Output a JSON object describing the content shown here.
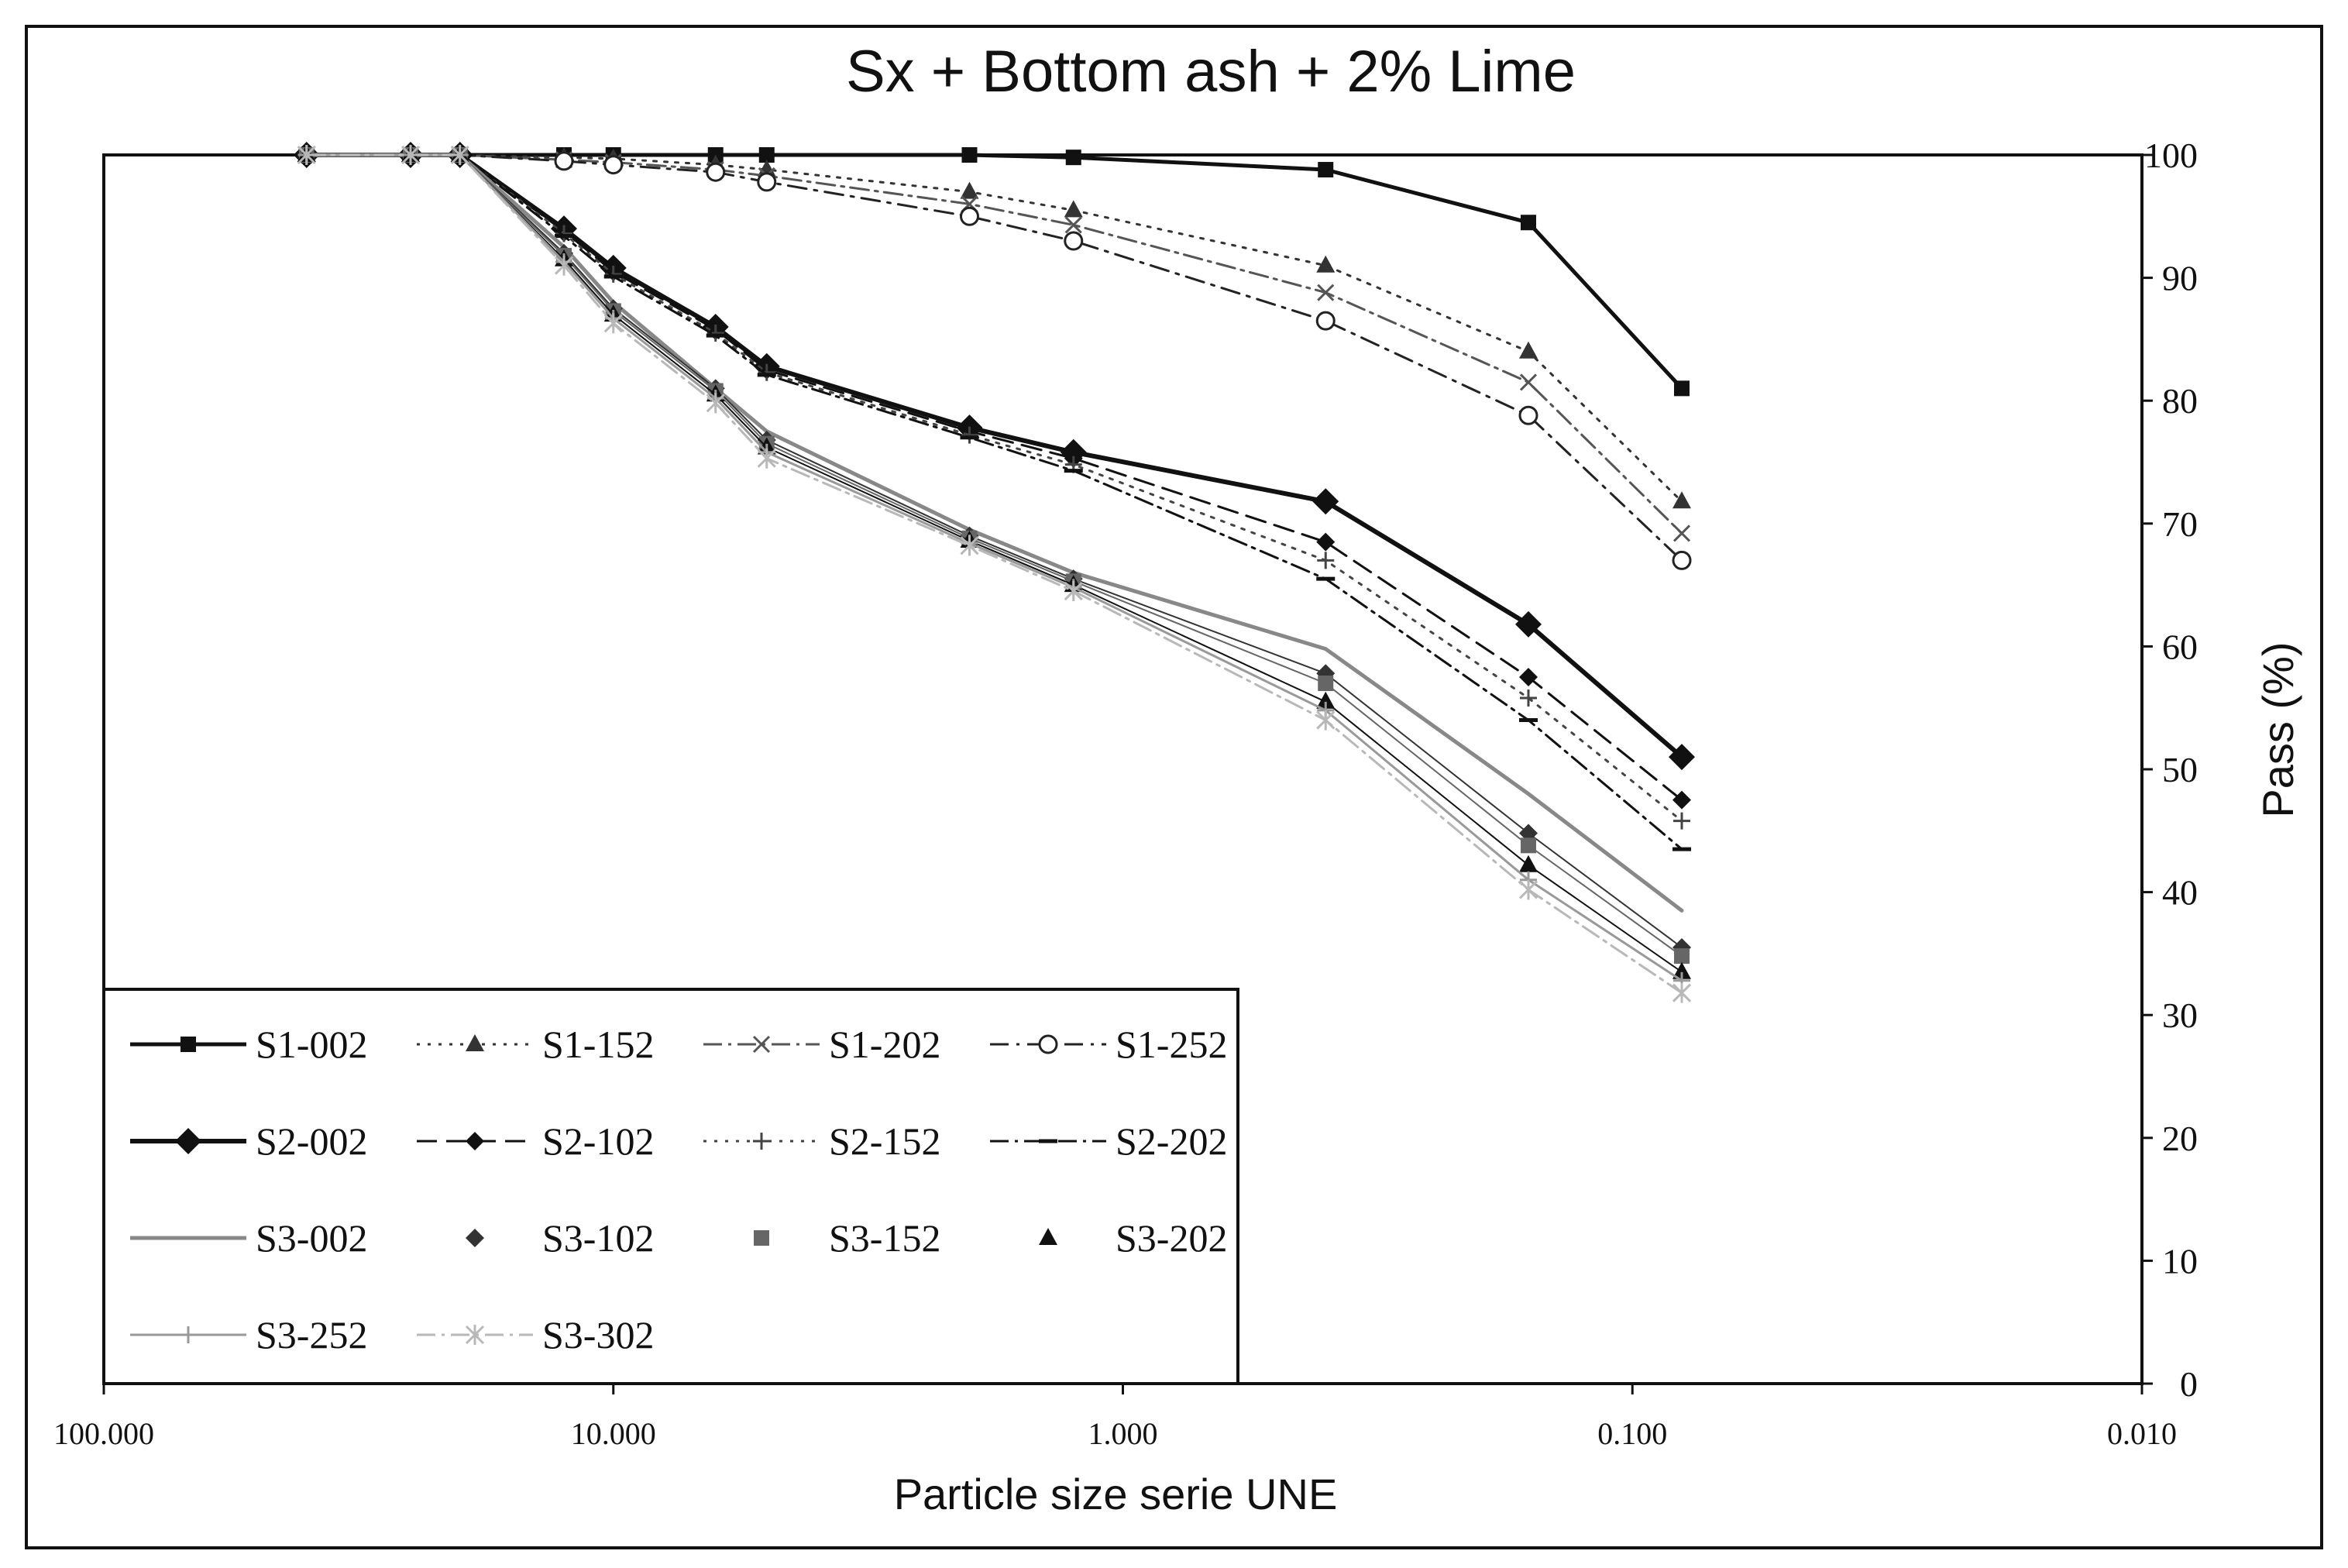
{
  "chart_data": {
    "type": "line",
    "title": "Sx + Bottom ash + 2% Lime",
    "xlabel": "Particle size serie UNE",
    "ylabel": "Pass (%)",
    "x_scale": "log",
    "x_reversed": true,
    "xlim": [
      100,
      0.01
    ],
    "ylim": [
      0,
      100
    ],
    "x_tick_values": [
      100,
      10,
      1,
      0.1,
      0.01
    ],
    "x_tick_labels": [
      "100.000",
      "10.000",
      "1.000",
      "0.100",
      "0.010"
    ],
    "y_ticks": [
      0,
      10,
      20,
      30,
      40,
      50,
      60,
      70,
      80,
      90,
      100
    ],
    "y_axis_side": "right",
    "legend_position": "bottom-left",
    "series": [
      {
        "name": "S1-002",
        "color": "#111111",
        "width": 5,
        "dash": "",
        "marker": "square",
        "points": [
          [
            40,
            100
          ],
          [
            25,
            100
          ],
          [
            20,
            100
          ],
          [
            12.5,
            100
          ],
          [
            10,
            100
          ],
          [
            6.3,
            100
          ],
          [
            5,
            100
          ],
          [
            2,
            100
          ],
          [
            1.25,
            99.8
          ],
          [
            0.4,
            98.8
          ],
          [
            0.16,
            94.5
          ],
          [
            0.08,
            81
          ]
        ]
      },
      {
        "name": "S1-152",
        "color": "#333333",
        "width": 3,
        "dash": "4 10",
        "marker": "triangle",
        "points": [
          [
            40,
            100
          ],
          [
            25,
            100
          ],
          [
            20,
            100
          ],
          [
            12.5,
            99.8
          ],
          [
            10,
            99.7
          ],
          [
            6.3,
            99.2
          ],
          [
            5,
            98.8
          ],
          [
            2,
            97
          ],
          [
            1.25,
            95.5
          ],
          [
            0.4,
            91
          ],
          [
            0.16,
            84
          ],
          [
            0.08,
            71.8
          ]
        ]
      },
      {
        "name": "S1-202",
        "color": "#555555",
        "width": 3,
        "dash": "24 8 4 8",
        "marker": "x",
        "points": [
          [
            40,
            100
          ],
          [
            25,
            100
          ],
          [
            20,
            100
          ],
          [
            12.5,
            99.6
          ],
          [
            10,
            99.4
          ],
          [
            6.3,
            98.8
          ],
          [
            5,
            98.3
          ],
          [
            2,
            96
          ],
          [
            1.25,
            94.3
          ],
          [
            0.4,
            88.8
          ],
          [
            0.16,
            81.5
          ],
          [
            0.08,
            69.2
          ]
        ]
      },
      {
        "name": "S1-252",
        "color": "#222222",
        "width": 3,
        "dash": "24 10 4 10",
        "marker": "circle-open",
        "points": [
          [
            40,
            100
          ],
          [
            25,
            100
          ],
          [
            20,
            100
          ],
          [
            12.5,
            99.5
          ],
          [
            10,
            99.2
          ],
          [
            6.3,
            98.6
          ],
          [
            5,
            97.8
          ],
          [
            2,
            95
          ],
          [
            1.25,
            93
          ],
          [
            0.4,
            86.5
          ],
          [
            0.16,
            78.8
          ],
          [
            0.08,
            67
          ]
        ]
      },
      {
        "name": "S2-002",
        "color": "#111111",
        "width": 6,
        "dash": "",
        "marker": "diamond",
        "points": [
          [
            40,
            100
          ],
          [
            25,
            100
          ],
          [
            20,
            100
          ],
          [
            12.5,
            94
          ],
          [
            10,
            90.8
          ],
          [
            6.3,
            86
          ],
          [
            5,
            82.8
          ],
          [
            2,
            77.8
          ],
          [
            1.25,
            75.8
          ],
          [
            0.4,
            71.8
          ],
          [
            0.16,
            61.8
          ],
          [
            0.08,
            51
          ]
        ]
      },
      {
        "name": "S2-102",
        "color": "#111111",
        "width": 3,
        "dash": "26 12",
        "marker": "diamond-small",
        "points": [
          [
            40,
            100
          ],
          [
            25,
            100
          ],
          [
            20,
            100
          ],
          [
            12.5,
            93.8
          ],
          [
            10,
            90.5
          ],
          [
            6.3,
            85.8
          ],
          [
            5,
            82.5
          ],
          [
            2,
            77.5
          ],
          [
            1.25,
            75.3
          ],
          [
            0.4,
            68.5
          ],
          [
            0.16,
            57.5
          ],
          [
            0.08,
            47.5
          ]
        ]
      },
      {
        "name": "S2-152",
        "color": "#444444",
        "width": 3,
        "dash": "4 10",
        "marker": "plus",
        "points": [
          [
            40,
            100
          ],
          [
            25,
            100
          ],
          [
            20,
            100
          ],
          [
            12.5,
            93.6
          ],
          [
            10,
            90.3
          ],
          [
            6.3,
            85.5
          ],
          [
            5,
            82.3
          ],
          [
            2,
            77.2
          ],
          [
            1.25,
            74.8
          ],
          [
            0.4,
            67
          ],
          [
            0.16,
            55.8
          ],
          [
            0.08,
            45.8
          ]
        ]
      },
      {
        "name": "S2-202",
        "color": "#111111",
        "width": 3,
        "dash": "24 8 4 8",
        "marker": "dash",
        "points": [
          [
            40,
            100
          ],
          [
            25,
            100
          ],
          [
            20,
            100
          ],
          [
            12.5,
            93.4
          ],
          [
            10,
            90.1
          ],
          [
            6.3,
            85.3
          ],
          [
            5,
            82.1
          ],
          [
            2,
            77
          ],
          [
            1.25,
            74.3
          ],
          [
            0.4,
            65.5
          ],
          [
            0.16,
            54
          ],
          [
            0.08,
            43.5
          ]
        ]
      },
      {
        "name": "S3-002",
        "color": "#888888",
        "width": 5,
        "dash": "",
        "marker": "none",
        "points": [
          [
            40,
            100
          ],
          [
            25,
            100
          ],
          [
            20,
            100
          ],
          [
            12.5,
            92.5
          ],
          [
            10,
            88
          ],
          [
            6.3,
            81
          ],
          [
            5,
            77.5
          ],
          [
            2,
            69.5
          ],
          [
            1.25,
            66
          ],
          [
            0.4,
            59.8
          ],
          [
            0.16,
            48
          ],
          [
            0.08,
            38.5
          ]
        ]
      },
      {
        "name": "S3-102",
        "color": "#333333",
        "width": 2,
        "dash": "",
        "marker": "diamond-small",
        "points": [
          [
            40,
            100
          ],
          [
            25,
            100
          ],
          [
            20,
            100
          ],
          [
            12.5,
            92
          ],
          [
            10,
            87.5
          ],
          [
            6.3,
            81
          ],
          [
            5,
            76.8
          ],
          [
            2,
            69
          ],
          [
            1.25,
            65.5
          ],
          [
            0.4,
            57.8
          ],
          [
            0.16,
            44.8
          ],
          [
            0.08,
            35.5
          ]
        ]
      },
      {
        "name": "S3-152",
        "color": "#666666",
        "width": 2,
        "dash": "",
        "marker": "square",
        "points": [
          [
            40,
            100
          ],
          [
            25,
            100
          ],
          [
            20,
            100
          ],
          [
            12.5,
            91.8
          ],
          [
            10,
            87.3
          ],
          [
            6.3,
            80.8
          ],
          [
            5,
            76.5
          ],
          [
            2,
            68.8
          ],
          [
            1.25,
            65.3
          ],
          [
            0.4,
            57
          ],
          [
            0.16,
            43.8
          ],
          [
            0.08,
            34.8
          ]
        ]
      },
      {
        "name": "S3-202",
        "color": "#111111",
        "width": 2,
        "dash": "",
        "marker": "triangle",
        "points": [
          [
            40,
            100
          ],
          [
            25,
            100
          ],
          [
            20,
            100
          ],
          [
            12.5,
            91.5
          ],
          [
            10,
            87
          ],
          [
            6.3,
            80.5
          ],
          [
            5,
            76.2
          ],
          [
            2,
            68.6
          ],
          [
            1.25,
            65
          ],
          [
            0.4,
            55.5
          ],
          [
            0.16,
            42.2
          ],
          [
            0.08,
            33.5
          ]
        ]
      },
      {
        "name": "S3-252",
        "color": "#999999",
        "width": 3,
        "dash": "",
        "marker": "plus",
        "points": [
          [
            40,
            100
          ],
          [
            25,
            100
          ],
          [
            20,
            100
          ],
          [
            12.5,
            91.3
          ],
          [
            10,
            86.7
          ],
          [
            6.3,
            80.2
          ],
          [
            5,
            75.8
          ],
          [
            2,
            68.4
          ],
          [
            1.25,
            64.8
          ],
          [
            0.4,
            54.8
          ],
          [
            0.16,
            41
          ],
          [
            0.08,
            32.8
          ]
        ]
      },
      {
        "name": "S3-302",
        "color": "#b8b8b8",
        "width": 3,
        "dash": "24 8 4 8",
        "marker": "star",
        "points": [
          [
            40,
            100
          ],
          [
            25,
            100
          ],
          [
            20,
            100
          ],
          [
            12.5,
            91
          ],
          [
            10,
            86.3
          ],
          [
            6.3,
            79.8
          ],
          [
            5,
            75.3
          ],
          [
            2,
            68.2
          ],
          [
            1.25,
            64.5
          ],
          [
            0.4,
            54
          ],
          [
            0.16,
            40.2
          ],
          [
            0.08,
            31.8
          ]
        ]
      }
    ]
  }
}
